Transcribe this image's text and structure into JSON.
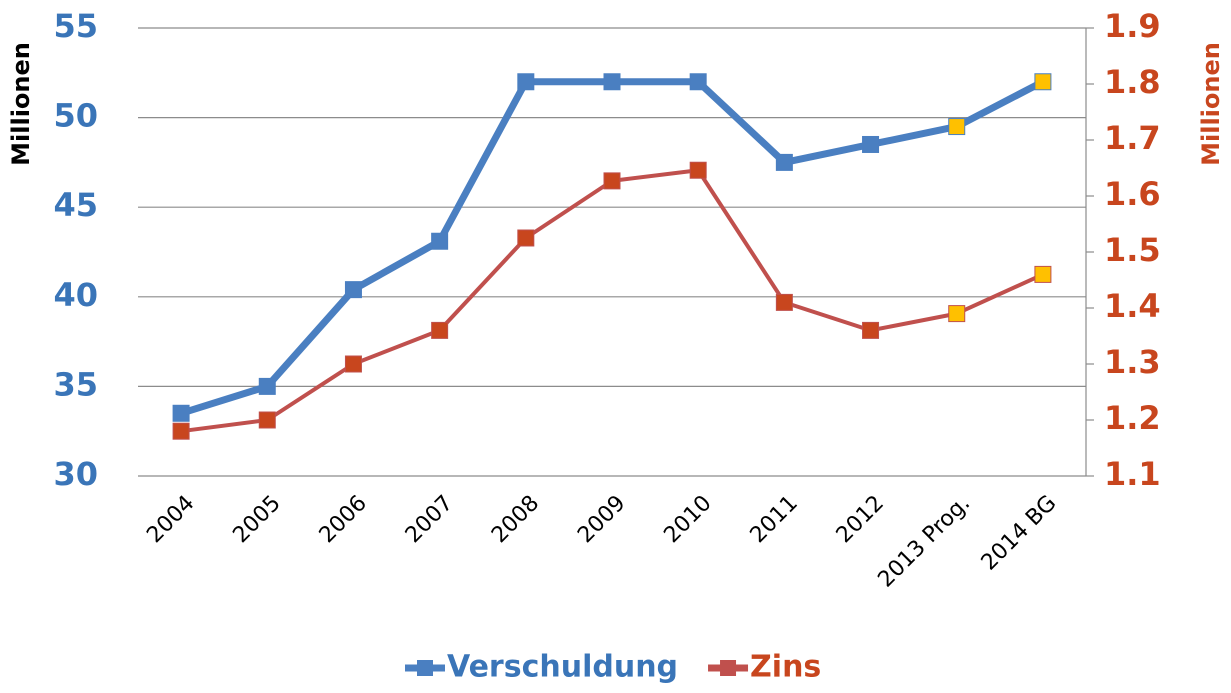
{
  "chart_data": {
    "type": "line",
    "categories": [
      "2004",
      "2005",
      "2006",
      "2007",
      "2008",
      "2009",
      "2010",
      "2011",
      "2012",
      "2013 Prog.",
      "2014 BG"
    ],
    "y_label": "Millionen",
    "y2_label": "Millionen",
    "ylim": [
      30,
      55
    ],
    "yticks": [
      30,
      35,
      40,
      45,
      50,
      55
    ],
    "y2lim": [
      1.1,
      1.9
    ],
    "y2ticks": [
      1.1,
      1.2,
      1.3,
      1.4,
      1.5,
      1.6,
      1.7,
      1.8,
      1.9
    ],
    "y_tick_color": "#3a75b8",
    "y2_tick_color": "#c8461e",
    "grid": true,
    "legend": "bottom",
    "series": [
      {
        "name": "Verschuldung",
        "color": "#4a7fc1",
        "text_color": "#3a75b8",
        "values": [
          33.5,
          35,
          40.4,
          43.1,
          52,
          52,
          52,
          47.5,
          48.5,
          49.5,
          52
        ],
        "marker_colors": [
          "#4a7fc1",
          "#4a7fc1",
          "#4a7fc1",
          "#4a7fc1",
          "#4a7fc1",
          "#4a7fc1",
          "#4a7fc1",
          "#4a7fc1",
          "#4a7fc1",
          "#ffc000",
          "#ffc000"
        ]
      },
      {
        "name": "Zins",
        "color": "#c0504d",
        "text_color": "#c8461e",
        "axis": "y2",
        "values": [
          1.18,
          1.2,
          1.3,
          1.36,
          1.525,
          1.627,
          1.646,
          1.41,
          1.36,
          1.39,
          1.46
        ],
        "marker_colors": [
          "#c8461e",
          "#c8461e",
          "#c8461e",
          "#c8461e",
          "#c8461e",
          "#c8461e",
          "#c8461e",
          "#c8461e",
          "#c8461e",
          "#ffc000",
          "#ffc000"
        ]
      }
    ]
  }
}
